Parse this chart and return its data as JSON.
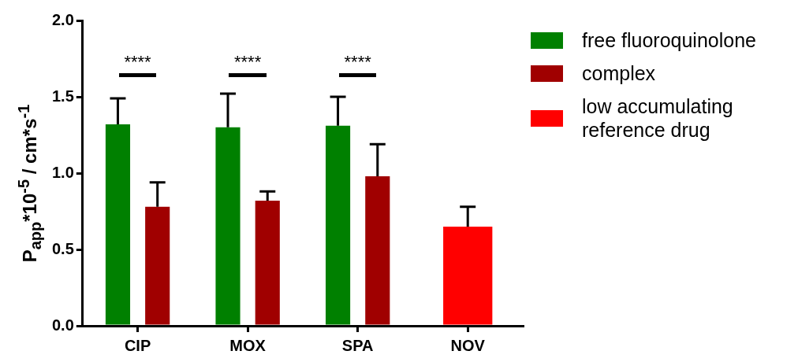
{
  "chart_data": {
    "type": "bar",
    "ylabel": "P$_{app}$*10$^{-5}$ / cm*s$^{-1}$",
    "categories": [
      "CIP",
      "MOX",
      "SPA",
      "NOV"
    ],
    "series": [
      {
        "name": "free fluoroquinolone",
        "color": "#008000",
        "values": [
          1.32,
          1.3,
          1.31,
          null
        ],
        "errors": [
          [
            1.32,
            1.49
          ],
          [
            1.3,
            1.52
          ],
          [
            1.31,
            1.5
          ],
          null
        ]
      },
      {
        "name": "complex",
        "color": "#a00000",
        "values": [
          0.78,
          0.82,
          0.98,
          null
        ],
        "errors": [
          [
            0.78,
            0.94
          ],
          [
            0.82,
            0.88
          ],
          [
            0.98,
            1.19
          ],
          null
        ]
      },
      {
        "name": "low accumulating reference drug",
        "color": "#ff0000",
        "values": [
          null,
          null,
          null,
          0.65
        ],
        "errors": [
          null,
          null,
          null,
          [
            0.65,
            0.78
          ]
        ]
      }
    ],
    "ylim": [
      0,
      2.0
    ],
    "yticks": [
      {
        "value": 0,
        "label": "0.0"
      },
      {
        "value": 0.5,
        "label": "0.5"
      },
      {
        "value": 1,
        "label": "1.0"
      },
      {
        "value": 1.5,
        "label": "1.5"
      },
      {
        "value": 2,
        "label": "2.0"
      }
    ],
    "grid": false,
    "legend": "top right",
    "annotations": [
      "****",
      "****",
      "****"
    ]
  }
}
